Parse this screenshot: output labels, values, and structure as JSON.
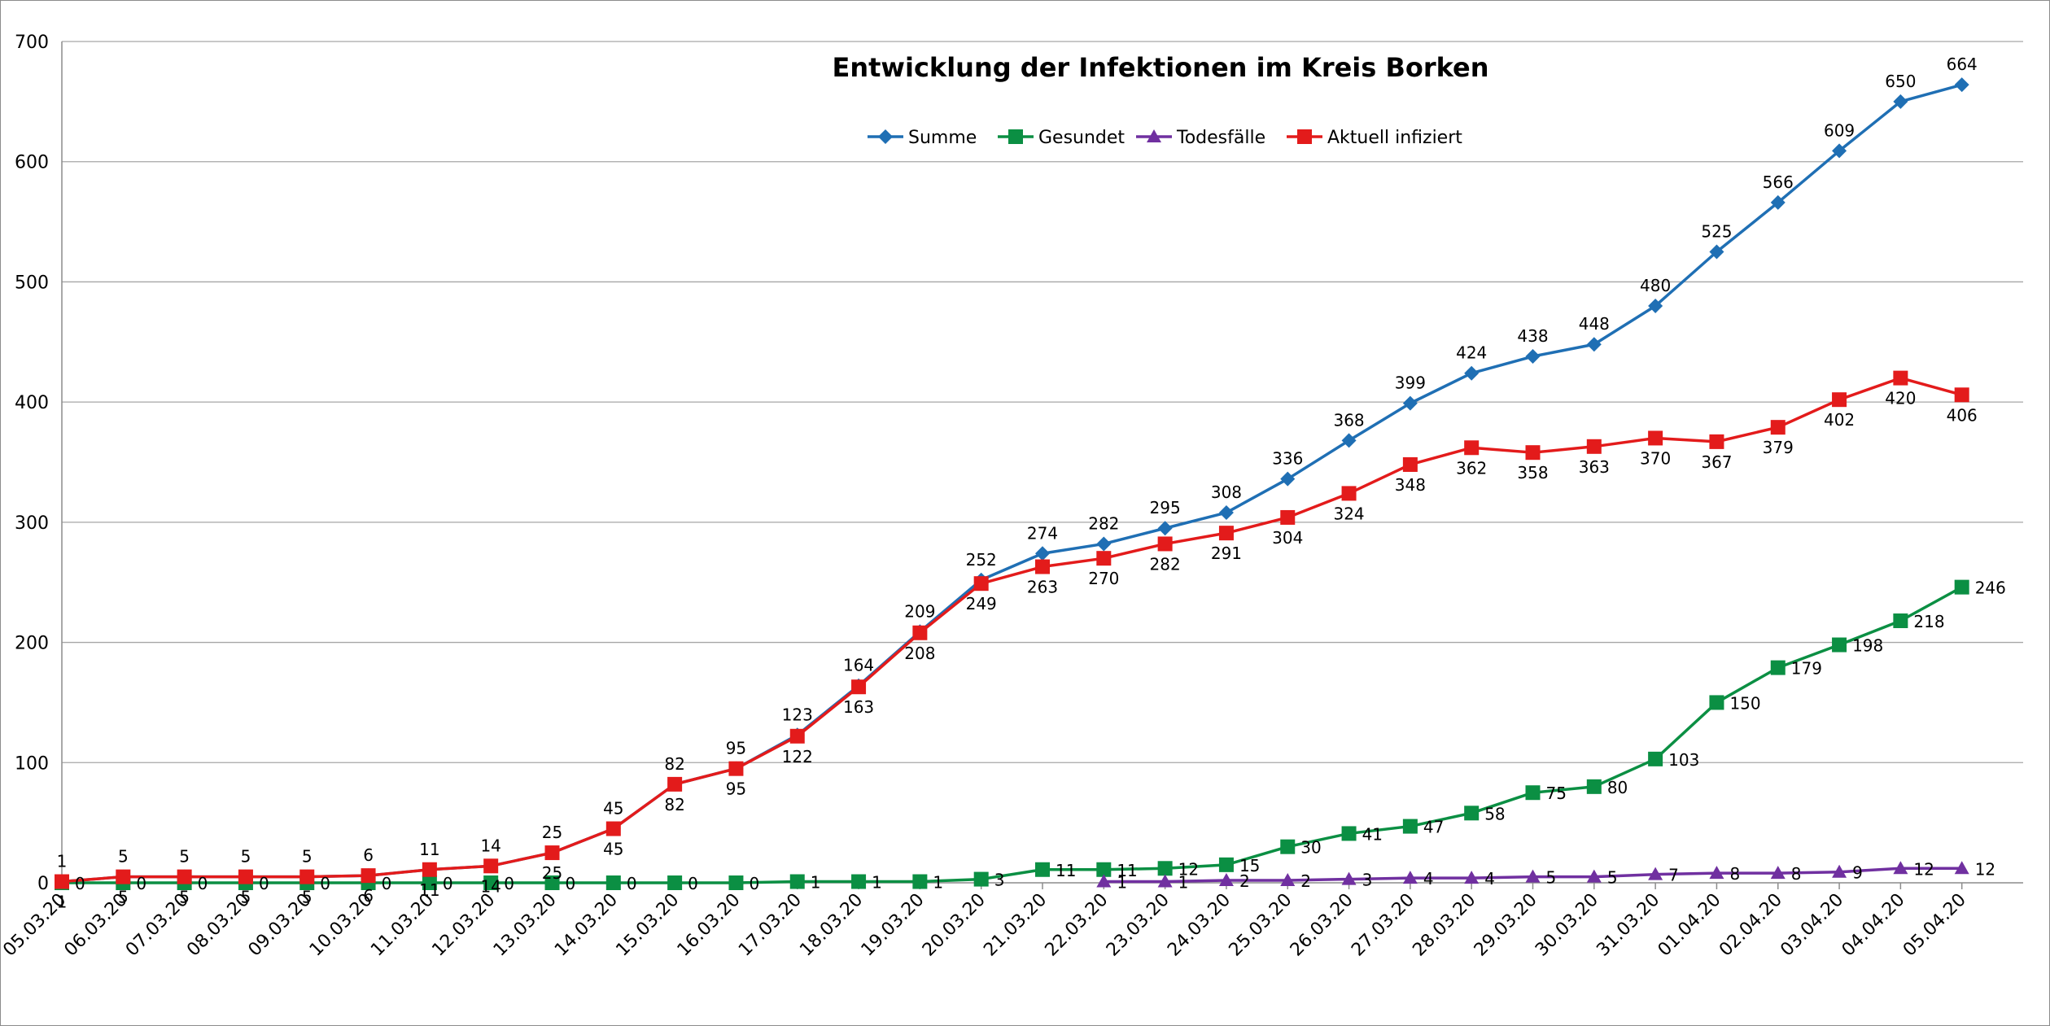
{
  "chart_data": {
    "type": "line",
    "title": "Entwicklung der Infektionen im Kreis Borken",
    "xlabel": "",
    "ylabel": "",
    "ylim": [
      0,
      700
    ],
    "yticks": [
      0,
      100,
      200,
      300,
      400,
      500,
      600,
      700
    ],
    "grid": "horizontal",
    "legend_position": "top-center",
    "categories": [
      "05.03.20",
      "06.03.20",
      "07.03.20",
      "08.03.20",
      "09.03.20",
      "10.03.20",
      "11.03.20",
      "12.03.20",
      "13.03.20",
      "14.03.20",
      "15.03.20",
      "16.03.20",
      "17.03.20",
      "18.03.20",
      "19.03.20",
      "20.03.20",
      "21.03.20",
      "22.03.20",
      "23.03.20",
      "24.03.20",
      "25.03.20",
      "26.03.20",
      "27.03.20",
      "28.03.20",
      "29.03.20",
      "30.03.20",
      "31.03.20",
      "01.04.20",
      "02.04.20",
      "03.04.20",
      "04.04.20",
      "05.04.20"
    ],
    "series": [
      {
        "name": "Summe",
        "color": "#1f6fb4",
        "marker": "diamond",
        "values": [
          1,
          5,
          5,
          5,
          5,
          6,
          11,
          14,
          25,
          45,
          82,
          95,
          123,
          164,
          209,
          252,
          274,
          282,
          295,
          308,
          336,
          368,
          399,
          424,
          438,
          448,
          480,
          525,
          566,
          609,
          650,
          664
        ]
      },
      {
        "name": "Gesundet",
        "color": "#0b8f43",
        "marker": "square",
        "values": [
          0,
          0,
          0,
          0,
          0,
          0,
          0,
          0,
          0,
          0,
          0,
          0,
          1,
          1,
          1,
          3,
          11,
          11,
          12,
          15,
          30,
          41,
          47,
          58,
          75,
          80,
          103,
          150,
          179,
          198,
          218,
          246
        ]
      },
      {
        "name": "Todesfälle",
        "color": "#7030a0",
        "marker": "triangle",
        "values": [
          null,
          null,
          null,
          null,
          null,
          null,
          null,
          null,
          null,
          null,
          null,
          null,
          null,
          null,
          null,
          null,
          null,
          1,
          1,
          2,
          2,
          3,
          4,
          4,
          5,
          5,
          7,
          8,
          8,
          9,
          12,
          12
        ]
      },
      {
        "name": "Aktuell infiziert",
        "color": "#e31b1b",
        "marker": "square",
        "values": [
          1,
          5,
          5,
          5,
          5,
          6,
          11,
          14,
          25,
          45,
          82,
          95,
          122,
          163,
          208,
          249,
          263,
          270,
          282,
          291,
          304,
          324,
          348,
          362,
          358,
          363,
          370,
          367,
          379,
          402,
          420,
          406
        ]
      }
    ]
  }
}
